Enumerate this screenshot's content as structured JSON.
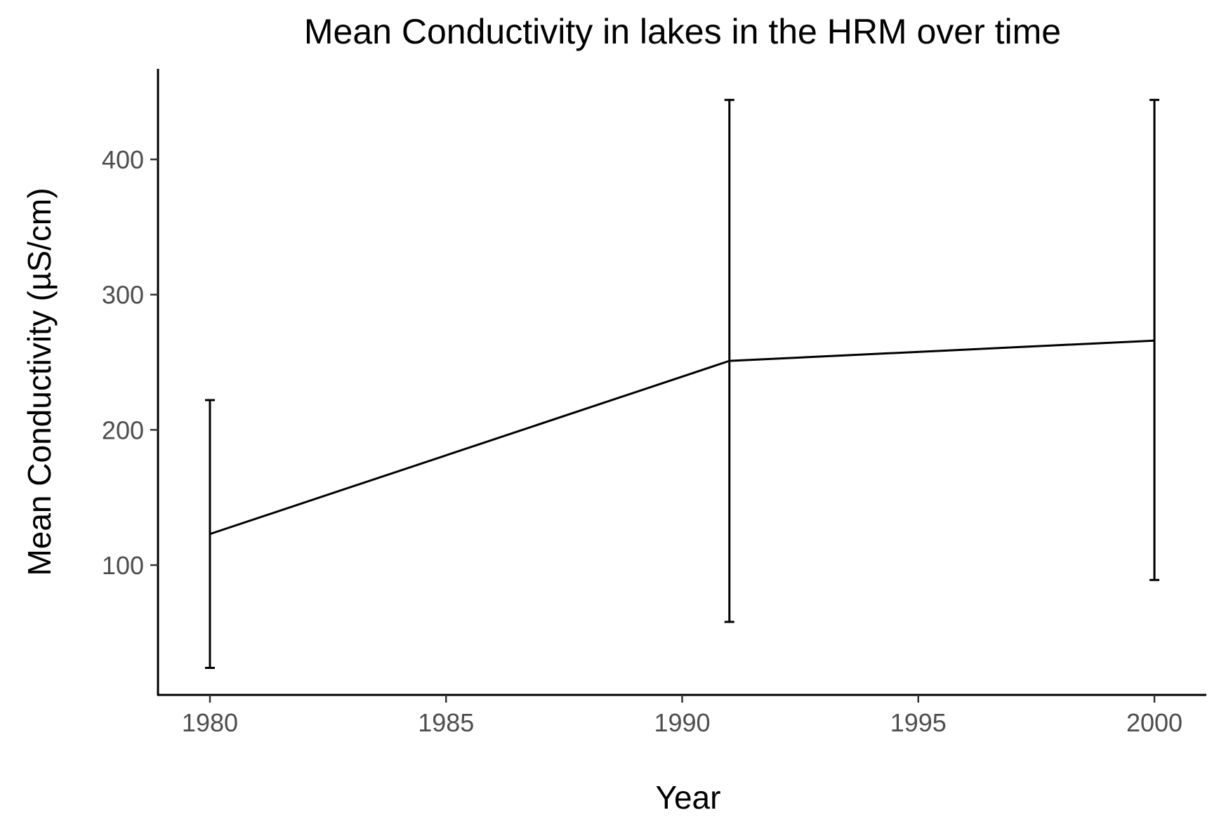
{
  "chart_data": {
    "type": "line",
    "title": "Mean Conductivity in lakes in the HRM over time",
    "xlabel": "Year",
    "ylabel": "Mean Conductivity (µS/cm)",
    "xlim": [
      1978.9,
      2001.1
    ],
    "ylim": [
      4,
      467
    ],
    "x_ticks": [
      1980,
      1985,
      1990,
      1995,
      2000
    ],
    "y_ticks": [
      100,
      200,
      300,
      400
    ],
    "grid": false,
    "legend": "none",
    "series": [
      {
        "color": "#000000",
        "points": [
          {
            "x": 1980,
            "y": 123,
            "ymin": 24,
            "ymax": 222
          },
          {
            "x": 1991,
            "y": 251,
            "ymin": 58,
            "ymax": 444
          },
          {
            "x": 2000,
            "y": 266,
            "ymin": 89,
            "ymax": 444
          }
        ]
      }
    ]
  }
}
